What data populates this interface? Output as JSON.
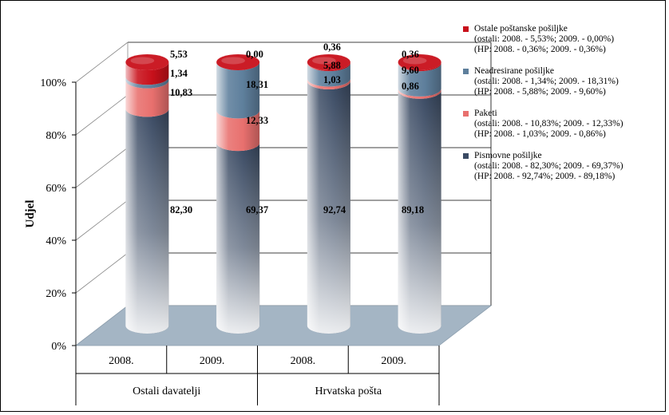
{
  "chart_data": {
    "type": "bar",
    "stacked": true,
    "percent_stacked": true,
    "shape": "3d-cylinder",
    "title": "",
    "ylabel": "Udjel",
    "ylim": [
      0,
      100
    ],
    "y_ticks": [
      "0%",
      "20%",
      "40%",
      "60%",
      "80%",
      "100%"
    ],
    "categories": [
      "2008.",
      "2009.",
      "2008.",
      "2009."
    ],
    "category_groups": [
      {
        "label": "Ostali davatelji",
        "span": 2
      },
      {
        "label": "Hrvatska pošta",
        "span": 2
      }
    ],
    "series": [
      {
        "name": "Pismovne pošiljke",
        "color": "#3a4a63",
        "values": [
          82.3,
          69.37,
          92.74,
          89.18
        ],
        "labels": [
          "82,30",
          "69,37",
          "92,74",
          "89,18"
        ]
      },
      {
        "name": "Paketi",
        "color": "#e8706e",
        "values": [
          10.83,
          12.33,
          1.03,
          0.86
        ],
        "labels": [
          "10,83",
          "12,33",
          "1,03",
          "0,86"
        ]
      },
      {
        "name": "Neadresirane pošiljke",
        "color": "#5e7f9c",
        "values": [
          1.34,
          18.31,
          5.88,
          9.6
        ],
        "labels": [
          "1,34",
          "18,31",
          "5,88",
          "9,60"
        ]
      },
      {
        "name": "Ostale poštanske pošiljke",
        "color": "#c8101b",
        "values": [
          5.53,
          0.0,
          0.36,
          0.36
        ],
        "labels": [
          "5,53",
          "0,00",
          "0,36",
          "0,36"
        ]
      }
    ],
    "legend_position": "right",
    "grid": true
  },
  "legend": [
    {
      "color": "#c8101b",
      "lines": [
        "Ostale poštanske pošiljke",
        "(ostali: 2008. - 5,53%; 2009. - 0,00%)",
        "(HP: 2008. - 0,36%; 2009. - 0,36%)"
      ]
    },
    {
      "color": "#5e7f9c",
      "lines": [
        "Neadresirane pošiljke",
        "(ostali: 2008. - 1,34%; 2009. - 18,31%)",
        "(HP: 2008. - 5,88%; 2009. - 9,60%)"
      ]
    },
    {
      "color": "#e8706e",
      "lines": [
        "Paketi",
        "(ostali: 2008. - 10,83%; 2009. - 12,33%)",
        "(HP: 2008. - 1,03%; 2009. - 0,86%)"
      ]
    },
    {
      "color": "#3a4a63",
      "lines": [
        "Pismovne pošiljke",
        "(ostali: 2008. - 82,30%; 2009. - 69,37%)",
        "(HP: 2008. - 92,74%; 2009. - 89,18%)"
      ]
    }
  ]
}
